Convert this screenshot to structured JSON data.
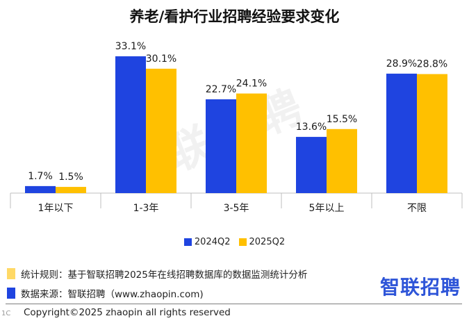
{
  "chart_data": {
    "type": "bar",
    "title": "养老/看护行业招聘经验要求变化",
    "categories": [
      "1年以下",
      "1-3年",
      "3-5年",
      "5年以上",
      "不限"
    ],
    "series": [
      {
        "name": "2024Q2",
        "color": "#1f44e0",
        "values": [
          1.7,
          33.1,
          22.7,
          13.6,
          28.9
        ],
        "labels": [
          "1.7%",
          "33.1%",
          "22.7%",
          "13.6%",
          "28.9%"
        ]
      },
      {
        "name": "2025Q2",
        "color": "#ffc000",
        "values": [
          1.5,
          30.1,
          24.1,
          15.5,
          28.8
        ],
        "labels": [
          "1.5%",
          "30.1%",
          "24.1%",
          "15.5%",
          "28.8%"
        ]
      }
    ],
    "ylim": [
      0,
      40
    ],
    "grid": false,
    "legend": "bottom"
  },
  "watermark": "智联招聘",
  "footer": {
    "rule_label": "统计规则：基于智联招聘2025年在线招聘数据库的数据监测统计分析",
    "source_label": "数据来源：智联招聘（www.zhaopin.com)",
    "rule_color": "#ffd966",
    "source_color": "#1f44e0",
    "brand": "智联招聘",
    "copyright": "Copyright©2025 zhaopin all rights reserved",
    "corner": "1C"
  }
}
